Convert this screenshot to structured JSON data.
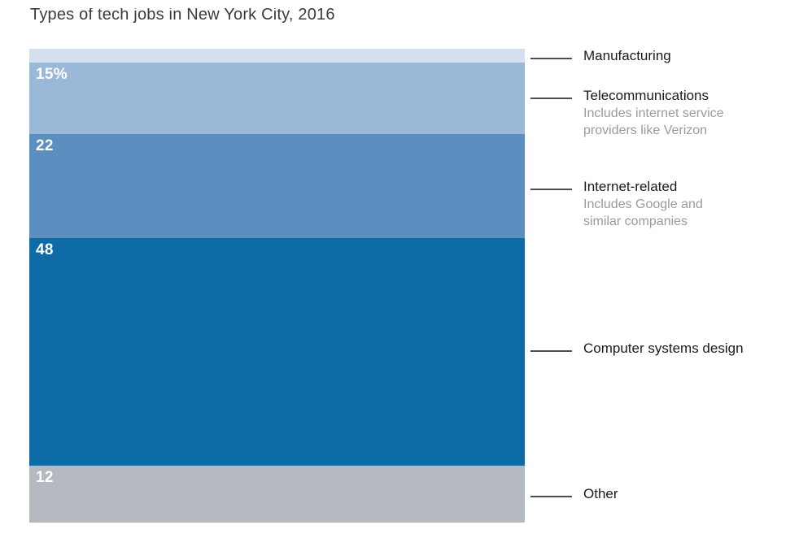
{
  "title": "Types of tech jobs in New York City, 2016",
  "colors": {
    "manufacturing": "#d5e0ef",
    "telecommunications": "#9ab9d9",
    "internet_related": "#5a8fbf",
    "computer_systems_design": "#0d6ba8",
    "other": "#b4bac0",
    "leader_line": "#4c4d55",
    "label_text": "#1a1a1a",
    "note_text": "#9b9b9b",
    "title_text": "#3b3b3b",
    "value_text": "#ffffff"
  },
  "chart_data": {
    "type": "bar",
    "variant": "single-stacked-column",
    "title": "Types of tech jobs in New York City, 2016",
    "unit": "percent of tech jobs",
    "legend_position": "right-annotations",
    "grid": false,
    "categories": [
      "Manufacturing",
      "Telecommunications",
      "Internet-related",
      "Computer systems design",
      "Other"
    ],
    "values": [
      3,
      15,
      22,
      48,
      12
    ],
    "segments": [
      {
        "label": "Manufacturing",
        "value": 3,
        "value_label": "",
        "color": "#d5e0ef",
        "note": ""
      },
      {
        "label": "Telecommunications",
        "value": 15,
        "value_label": "15%",
        "color": "#9ab9d9",
        "note_line1": "Includes internet service",
        "note_line2": "providers like Verizon"
      },
      {
        "label": "Internet-related",
        "value": 22,
        "value_label": "22",
        "color": "#5a8fbf",
        "note_line1": "Includes Google and",
        "note_line2": "similar companies"
      },
      {
        "label": "Computer systems design",
        "value": 48,
        "value_label": "48",
        "color": "#0d6ba8",
        "note": ""
      },
      {
        "label": "Other",
        "value": 12,
        "value_label": "12",
        "color": "#b4bac0",
        "note": ""
      }
    ]
  }
}
